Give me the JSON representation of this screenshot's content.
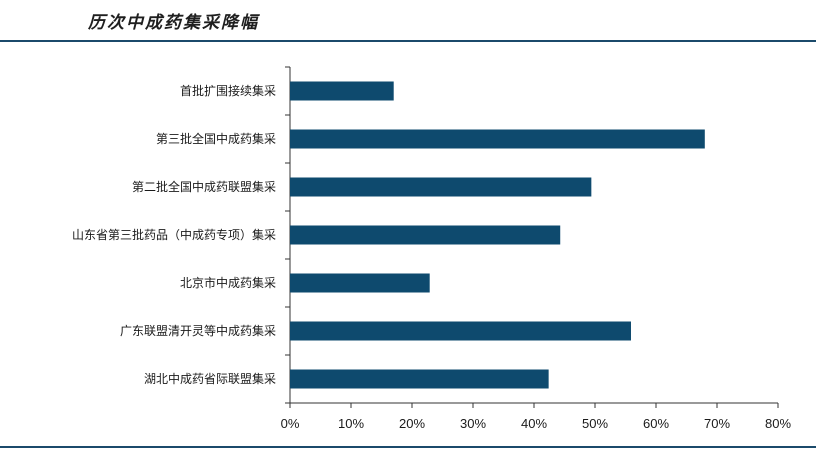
{
  "header": {
    "title": "历次中成药集采降幅"
  },
  "chart_data": {
    "type": "bar",
    "orientation": "horizontal",
    "title": "历次中成药集采降幅",
    "xlabel": "",
    "ylabel": "",
    "xlim": [
      0,
      0.8
    ],
    "x_ticks": [
      "0%",
      "10%",
      "20%",
      "30%",
      "40%",
      "50%",
      "60%",
      "70%",
      "80%"
    ],
    "categories": [
      "首批扩围接续集采",
      "第三批全国中成药集采",
      "第二批全国中成药联盟集采",
      "山东省第三批药品（中成药专项）集采",
      "北京市中成药集采",
      "广东联盟清开灵等中成药集采",
      "湖北中成药省际联盟集采"
    ],
    "values": [
      0.17,
      0.68,
      0.494,
      0.443,
      0.229,
      0.559,
      0.424
    ],
    "colors": {
      "bar": "#0e4a6e",
      "axis": "#333333"
    },
    "grid": false,
    "legend": "none"
  }
}
